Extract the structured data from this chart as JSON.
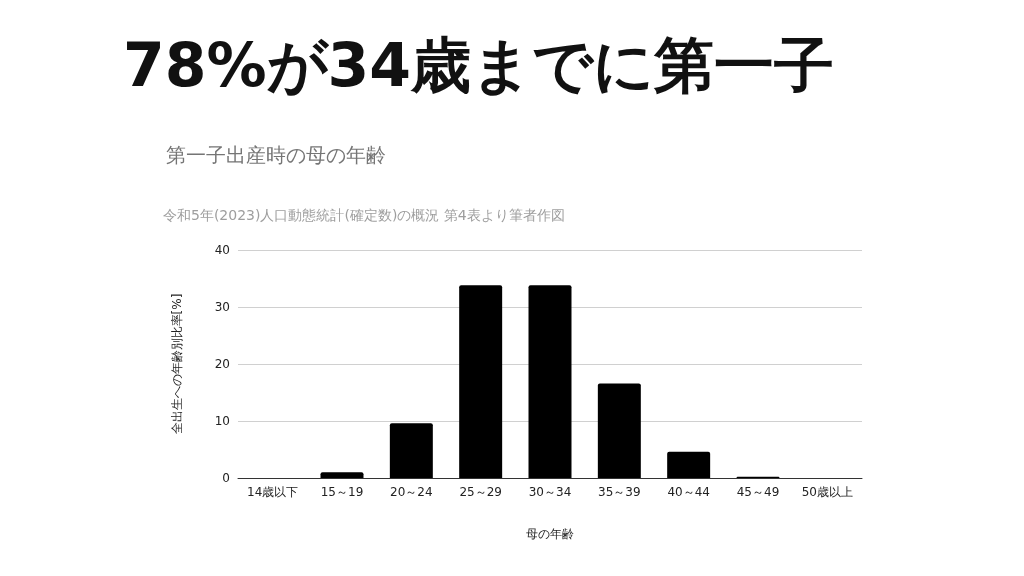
{
  "chart_data": {
    "type": "bar",
    "title": "78%が34歳までに第一子",
    "subtitle": "第一子出産時の母の年齢",
    "annotations": [
      "令和5年(2023)人口動態統計(確定数)の概況 第4表より筆者作図"
    ],
    "xlabel": "母の年齢",
    "ylabel": "全出生への年齢別比率[%]",
    "categories": [
      "14歳以下",
      "15～19",
      "20～24",
      "25～29",
      "30～34",
      "35～39",
      "40～44",
      "45～49",
      "50歳以上"
    ],
    "values": [
      0.0,
      1.0,
      9.6,
      33.8,
      33.8,
      16.6,
      4.6,
      0.2,
      0.0
    ],
    "color": "#000000",
    "ylim": [
      0,
      40
    ],
    "yticks": [
      0,
      10,
      20,
      30,
      40
    ],
    "grid": "y"
  }
}
